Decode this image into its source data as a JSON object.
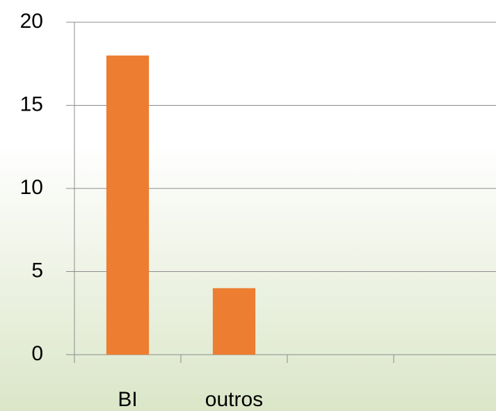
{
  "chart_data": {
    "type": "bar",
    "categories": [
      "BI",
      "outros",
      null,
      null
    ],
    "values": [
      18,
      4,
      null,
      null
    ],
    "color": "#ed7d31",
    "ylim": [
      0,
      20
    ],
    "yticks": [
      0,
      5,
      10,
      15,
      20
    ],
    "grid": true
  }
}
